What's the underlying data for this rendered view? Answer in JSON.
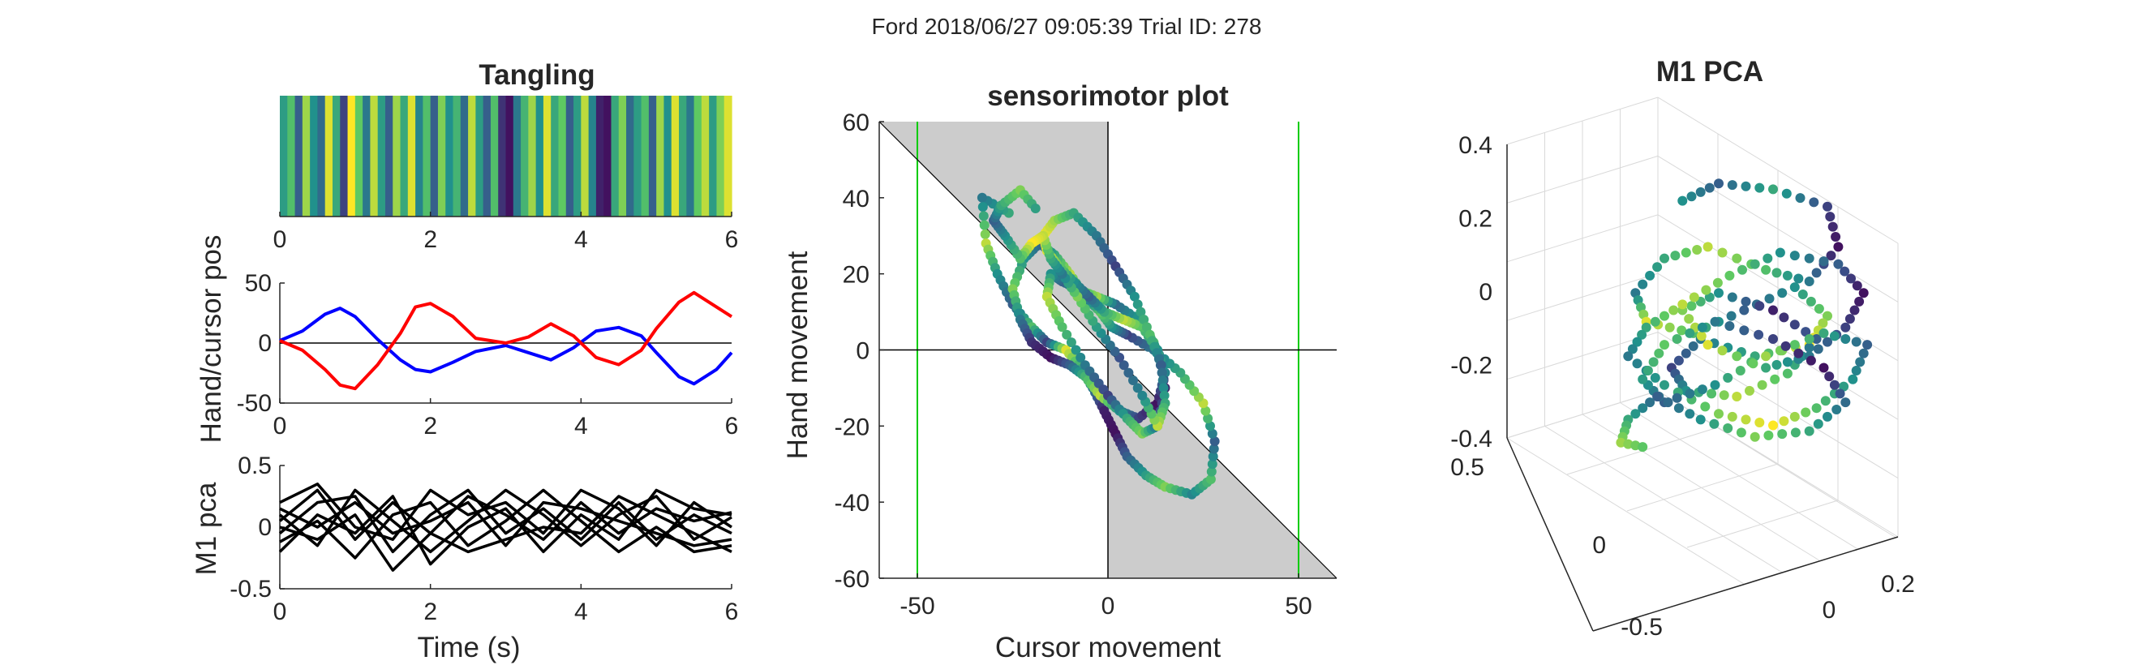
{
  "figure": {
    "suptitle": "Ford 2018/06/27 09:05:39 Trial ID: 278"
  },
  "colors": {
    "hand": "#0000ff",
    "cursor": "#ff0000",
    "pca_traces": "#000000",
    "shaded_region": "#cccccc",
    "reference_lines": "#00cc00",
    "axes": "#262626"
  },
  "chart_data": [
    {
      "type": "heatmap",
      "id": "tangling",
      "title": "Tangling",
      "xlim": [
        0,
        6
      ],
      "xticks": [
        0,
        2,
        4,
        6
      ],
      "colormap": "viridis",
      "time": [
        0.0,
        0.1,
        0.2,
        0.3,
        0.4,
        0.5,
        0.6,
        0.7,
        0.8,
        0.9,
        1.0,
        1.1,
        1.2,
        1.3,
        1.4,
        1.5,
        1.6,
        1.7,
        1.8,
        1.9,
        2.0,
        2.1,
        2.2,
        2.3,
        2.4,
        2.5,
        2.6,
        2.7,
        2.8,
        2.9,
        3.0,
        3.1,
        3.2,
        3.3,
        3.4,
        3.5,
        3.6,
        3.7,
        3.8,
        3.9,
        4.0,
        4.1,
        4.2,
        4.3,
        4.4,
        4.5,
        4.6,
        4.7,
        4.8,
        4.9,
        5.0,
        5.1,
        5.2,
        5.3,
        5.4,
        5.5,
        5.6,
        5.7,
        5.8,
        5.9
      ],
      "values": [
        0.55,
        0.7,
        0.3,
        0.85,
        0.5,
        0.35,
        0.95,
        0.6,
        0.2,
        1.0,
        0.75,
        0.4,
        0.9,
        0.55,
        0.3,
        0.85,
        0.6,
        0.95,
        0.45,
        0.7,
        0.3,
        0.8,
        0.5,
        0.65,
        0.35,
        0.9,
        0.55,
        0.3,
        0.7,
        0.15,
        0.05,
        0.4,
        0.65,
        0.85,
        0.5,
        0.95,
        0.6,
        0.75,
        0.3,
        0.55,
        0.9,
        0.45,
        0.1,
        0.05,
        0.6,
        0.8,
        0.35,
        0.55,
        0.7,
        0.3,
        0.85,
        0.5,
        0.95,
        0.6,
        0.4,
        0.75,
        0.9,
        0.55,
        0.8,
        0.95
      ]
    },
    {
      "type": "line",
      "id": "hand-cursor",
      "ylabel": "Hand/cursor pos",
      "xlim": [
        0,
        6
      ],
      "ylim": [
        -50,
        50
      ],
      "xticks": [
        0,
        2,
        4,
        6
      ],
      "yticks": [
        -50,
        0,
        50
      ],
      "x": [
        0,
        0.3,
        0.6,
        0.8,
        1.0,
        1.3,
        1.6,
        1.8,
        2.0,
        2.3,
        2.6,
        3.0,
        3.3,
        3.6,
        3.9,
        4.2,
        4.5,
        4.8,
        5.0,
        5.3,
        5.5,
        5.8,
        6.0
      ],
      "series": [
        {
          "key": "hand",
          "values": [
            2,
            10,
            24,
            29,
            22,
            3,
            -14,
            -22,
            -24,
            -16,
            -7,
            -2,
            -8,
            -14,
            -4,
            10,
            13,
            6,
            -8,
            -28,
            -34,
            -22,
            -8
          ]
        },
        {
          "key": "cursor",
          "values": [
            2,
            -6,
            -22,
            -35,
            -38,
            -18,
            8,
            30,
            33,
            22,
            4,
            0,
            5,
            16,
            6,
            -12,
            -18,
            -6,
            12,
            34,
            42,
            30,
            22
          ]
        }
      ]
    },
    {
      "type": "line",
      "id": "m1-pca-time",
      "xlabel": "Time (s)",
      "ylabel": "M1 pca",
      "xlim": [
        0,
        6
      ],
      "ylim": [
        -0.5,
        0.5
      ],
      "xticks": [
        0,
        2,
        4,
        6
      ],
      "yticks": [
        -0.5,
        0,
        0.5
      ],
      "x": [
        0,
        0.5,
        1.0,
        1.5,
        2.0,
        2.5,
        3.0,
        3.5,
        4.0,
        4.5,
        5.0,
        5.5,
        6.0
      ],
      "series": [
        {
          "values": [
            0.05,
            0.3,
            -0.1,
            0.2,
            -0.05,
            0.25,
            0.1,
            -0.1,
            0.2,
            -0.05,
            0.15,
            0.05,
            0.12
          ]
        },
        {
          "values": [
            -0.05,
            0.2,
            0.25,
            -0.2,
            0.1,
            0.3,
            -0.05,
            0.15,
            -0.1,
            0.2,
            -0.1,
            0.1,
            -0.05
          ]
        },
        {
          "values": [
            0.1,
            -0.15,
            0.3,
            0.05,
            -0.2,
            0.05,
            0.3,
            0.1,
            -0.15,
            0.1,
            0.25,
            -0.1,
            0.08
          ]
        },
        {
          "values": [
            -0.12,
            0.05,
            -0.25,
            0.1,
            0.2,
            -0.15,
            0.05,
            0.3,
            0.05,
            -0.2,
            0.0,
            -0.2,
            -0.15
          ]
        },
        {
          "values": [
            0.2,
            0.35,
            0.0,
            -0.1,
            0.3,
            0.1,
            0.2,
            -0.05,
            0.3,
            0.15,
            -0.15,
            0.2,
            0.0
          ]
        },
        {
          "values": [
            0.0,
            -0.1,
            0.1,
            -0.35,
            -0.05,
            -0.2,
            -0.1,
            0.0,
            -0.05,
            0.25,
            0.1,
            -0.05,
            -0.2
          ]
        },
        {
          "values": [
            -0.2,
            0.1,
            -0.05,
            0.25,
            -0.3,
            0.0,
            0.15,
            -0.2,
            0.1,
            -0.1,
            0.3,
            0.15,
            0.1
          ]
        },
        {
          "values": [
            0.15,
            0.0,
            0.2,
            -0.05,
            0.05,
            0.2,
            -0.15,
            0.2,
            0.15,
            0.05,
            -0.05,
            -0.15,
            -0.1
          ]
        }
      ]
    },
    {
      "type": "scatter",
      "id": "sensorimotor",
      "title": "sensorimotor plot",
      "xlabel": "Cursor movement",
      "ylabel": "Hand movement",
      "xlim": [
        -60,
        60
      ],
      "ylim": [
        -60,
        60
      ],
      "xticks": [
        -50,
        0,
        50
      ],
      "yticks": [
        -60,
        -40,
        -20,
        0,
        20,
        40,
        60
      ],
      "shaded_regions": [
        {
          "x": [
            -60,
            0,
            0,
            -60
          ],
          "y": [
            60,
            60,
            0,
            60
          ]
        },
        {
          "x": [
            0,
            60,
            0
          ],
          "y": [
            0,
            -60,
            -60
          ]
        }
      ],
      "vertical_lines": [
        -50,
        50
      ],
      "zero_lines": true,
      "diagonal": {
        "from": [
          -60,
          60
        ],
        "to": [
          60,
          -60
        ]
      },
      "trajectory": {
        "x": [
          -26,
          -33,
          -32,
          -29,
          -25,
          -20,
          -16,
          -11,
          -7,
          -4,
          -1,
          2,
          5,
          10,
          15,
          22,
          27,
          28,
          25,
          19,
          12,
          5,
          1,
          -2,
          -6,
          -10,
          -14,
          -18,
          -22,
          -25,
          -23,
          -20,
          -15,
          -10,
          -6,
          -2,
          3,
          8,
          13,
          15,
          12,
          8,
          2,
          -3,
          -8,
          -12,
          -15,
          -16,
          -12,
          -6,
          0,
          5,
          9,
          13,
          15,
          13,
          9,
          4,
          -1,
          -5,
          -9,
          -13,
          -16,
          -17,
          -14,
          -9,
          -3,
          2,
          7,
          11,
          14,
          15,
          13,
          9,
          3,
          -3,
          -8,
          -12,
          -15,
          -17,
          -20,
          -23,
          -27,
          -30,
          -28,
          -23,
          -18
        ],
        "y": [
          36,
          40,
          28,
          20,
          12,
          6,
          2,
          0,
          -5,
          -10,
          -16,
          -22,
          -28,
          -33,
          -36,
          -38,
          -34,
          -24,
          -14,
          -6,
          0,
          4,
          6,
          10,
          14,
          20,
          25,
          28,
          24,
          16,
          8,
          2,
          -2,
          -4,
          -7,
          -12,
          -16,
          -18,
          -14,
          -6,
          2,
          8,
          12,
          14,
          16,
          18,
          20,
          14,
          6,
          -4,
          -12,
          -18,
          -22,
          -20,
          -10,
          0,
          6,
          8,
          10,
          14,
          18,
          22,
          26,
          30,
          34,
          36,
          30,
          22,
          14,
          4,
          -4,
          -14,
          -20,
          -12,
          -2,
          6,
          14,
          20,
          24,
          30,
          28,
          24,
          30,
          34,
          38,
          42,
          36
        ],
        "color_values": [
          0.6,
          0.4,
          0.9,
          0.5,
          0.3,
          0.7,
          0.2,
          0.95,
          0.6,
          0.4,
          0.1,
          0.05,
          0.3,
          0.55,
          0.8,
          0.45,
          0.7,
          0.3,
          0.9,
          0.6,
          0.4,
          0.2,
          0.5,
          0.75,
          0.35,
          0.9,
          0.6,
          0.3,
          0.5,
          0.8,
          0.4,
          0.15,
          0.05,
          0.3,
          0.65,
          0.9,
          0.5,
          0.2,
          0.05,
          0.45,
          0.7,
          0.55,
          0.35,
          0.85,
          0.6,
          0.3,
          0.5,
          0.9,
          0.7,
          0.4,
          0.2,
          0.6,
          0.8,
          0.35,
          0.1,
          0.5,
          0.7,
          0.9,
          0.6,
          0.3,
          0.5,
          0.75,
          0.95,
          1.0,
          0.85,
          0.6,
          0.4,
          0.2,
          0.5,
          0.7,
          0.3,
          0.6,
          0.9,
          0.45,
          0.25,
          0.55,
          0.8,
          0.4,
          0.6,
          0.9,
          1.0,
          0.7,
          0.5,
          0.3,
          0.6,
          0.8,
          0.5
        ]
      }
    },
    {
      "type": "scatter",
      "id": "m1-pca-3d",
      "title": "M1 PCA",
      "projection": "3d",
      "zticks": [
        0.4,
        0.2,
        0,
        -0.2,
        -0.4
      ],
      "ylim_ticks": [
        0.5,
        0,
        -0.5
      ],
      "xticks": [
        0,
        0.2
      ],
      "grid": true,
      "trajectory": {
        "u": [
          0.35,
          0.45,
          0.6,
          0.75,
          0.78,
          0.7,
          0.58,
          0.42,
          0.3,
          0.22,
          0.25,
          0.38,
          0.52,
          0.66,
          0.75,
          0.7,
          0.55,
          0.4,
          0.32,
          0.36,
          0.5,
          0.64,
          0.72,
          0.6,
          0.45,
          0.35,
          0.42,
          0.58,
          0.7,
          0.8,
          0.85,
          0.78,
          0.62,
          0.48,
          0.35,
          0.25,
          0.2,
          0.3,
          0.45,
          0.6,
          0.72,
          0.82,
          0.86,
          0.74,
          0.58,
          0.44,
          0.3,
          0.24,
          0.3,
          0.44,
          0.6,
          0.74,
          0.8,
          0.7,
          0.55,
          0.4,
          0.28,
          0.2,
          0.18,
          0.26
        ],
        "v": [
          0.12,
          0.06,
          0.08,
          0.14,
          0.28,
          0.4,
          0.36,
          0.28,
          0.32,
          0.44,
          0.54,
          0.58,
          0.5,
          0.42,
          0.52,
          0.62,
          0.66,
          0.6,
          0.7,
          0.78,
          0.8,
          0.72,
          0.6,
          0.5,
          0.44,
          0.5,
          0.62,
          0.7,
          0.66,
          0.56,
          0.44,
          0.34,
          0.3,
          0.38,
          0.48,
          0.56,
          0.66,
          0.76,
          0.86,
          0.9,
          0.84,
          0.74,
          0.62,
          0.58,
          0.66,
          0.76,
          0.82,
          0.74,
          0.62,
          0.54,
          0.6,
          0.7,
          0.82,
          0.92,
          0.94,
          0.88,
          0.8,
          0.88,
          0.96,
          0.98
        ],
        "color_values": [
          0.5,
          0.3,
          0.6,
          0.2,
          0.05,
          0.4,
          0.7,
          0.9,
          0.6,
          0.4,
          0.95,
          0.7,
          0.3,
          0.5,
          0.8,
          1.0,
          0.6,
          0.4,
          0.2,
          0.5,
          0.9,
          0.7,
          0.3,
          0.1,
          0.5,
          0.8,
          0.95,
          0.6,
          0.4,
          0.2,
          0.05,
          0.3,
          0.5,
          0.75,
          0.9,
          0.6,
          0.4,
          0.55,
          0.8,
          1.0,
          0.7,
          0.5,
          0.3,
          0.6,
          0.85,
          0.5,
          0.3,
          0.55,
          0.75,
          0.4,
          0.2,
          0.05,
          0.35,
          0.6,
          0.8,
          0.5,
          0.3,
          0.6,
          0.85,
          0.7
        ]
      }
    }
  ]
}
